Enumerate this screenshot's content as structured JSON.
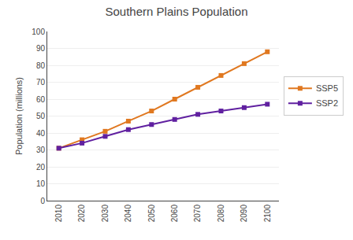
{
  "chart_data": {
    "type": "line",
    "title": "Southern Plains Population",
    "y_label": "Population (millions)",
    "x": [
      2010,
      2020,
      2030,
      2040,
      2050,
      2060,
      2070,
      2080,
      2090,
      2100
    ],
    "series": [
      {
        "name": "SSP5",
        "color": "#E07820",
        "marker": "square",
        "values": [
          31,
          36,
          41,
          47,
          53,
          60,
          67,
          74,
          81,
          88
        ]
      },
      {
        "name": "SSP2",
        "color": "#6020A0",
        "marker": "square",
        "values": [
          31,
          34,
          38,
          42,
          45,
          48,
          51,
          53,
          55,
          57
        ]
      }
    ],
    "xlim": [
      2005,
      2105
    ],
    "xticks": [
      2010,
      2020,
      2030,
      2040,
      2050,
      2060,
      2070,
      2080,
      2090,
      2100
    ],
    "ylim": [
      0,
      100
    ],
    "yticks": [
      0,
      10,
      20,
      30,
      40,
      50,
      60,
      70,
      80,
      90,
      100
    ],
    "grid": true,
    "legend": "right"
  }
}
